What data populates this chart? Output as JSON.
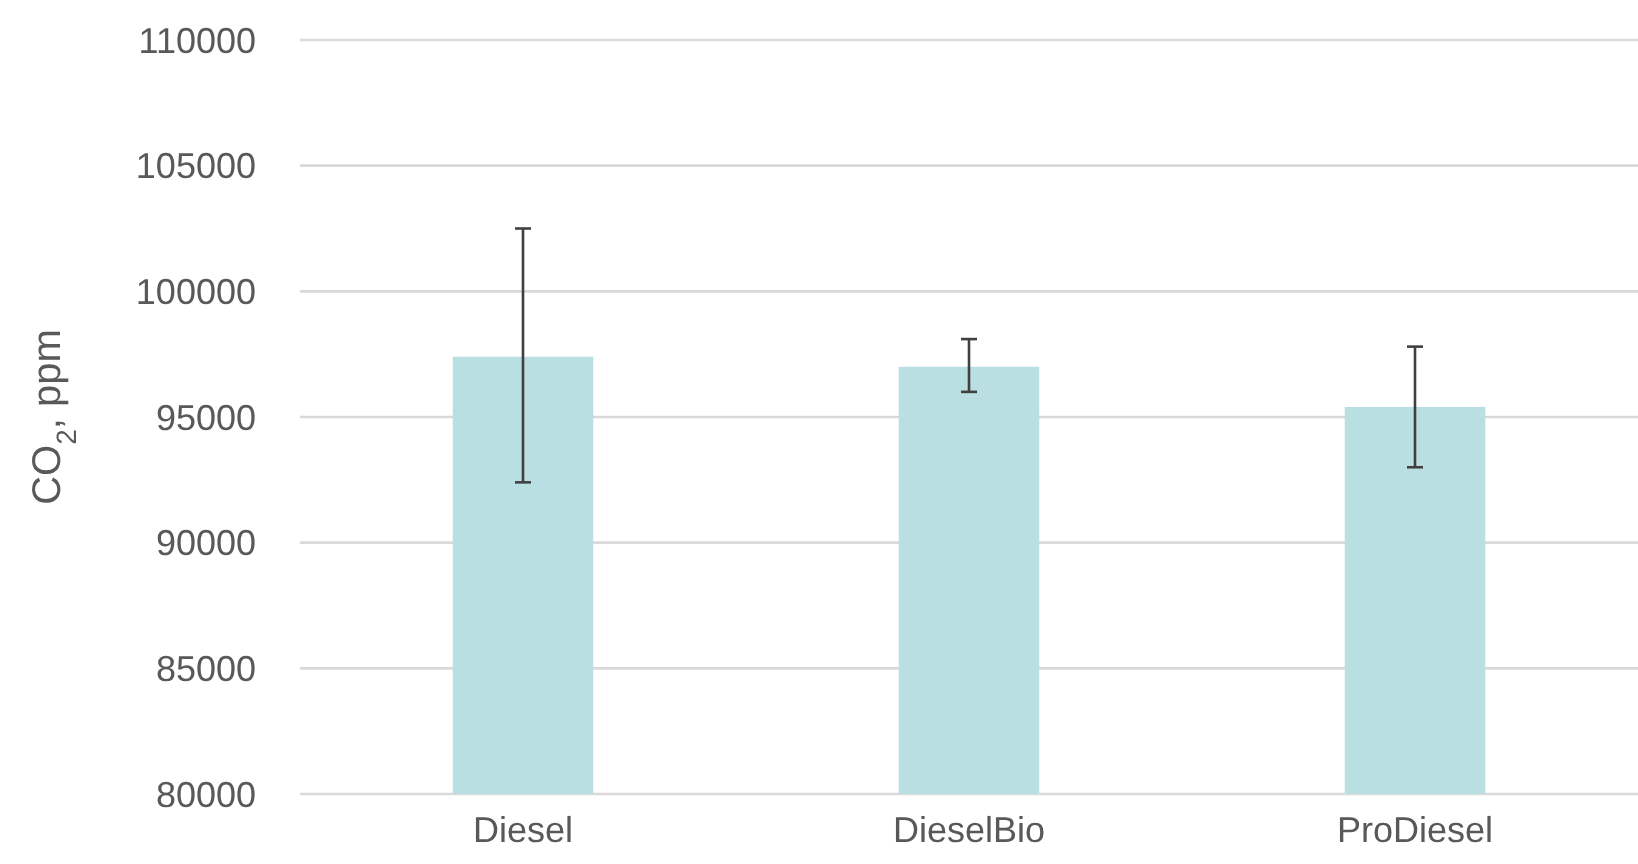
{
  "chart_data": {
    "type": "bar",
    "ylabel": "CO$_{2}$,  ppm",
    "categories": [
      "Diesel",
      "DieselBio",
      "ProDiesel"
    ],
    "values": [
      97400,
      97000,
      95400
    ],
    "errors": [
      [
        92400,
        102500
      ],
      [
        96000,
        98100
      ],
      [
        93000,
        97800
      ]
    ],
    "color": "#badfe2",
    "ylim": [
      80000,
      110000
    ],
    "yticks": [
      80000,
      85000,
      90000,
      95000,
      100000,
      105000,
      110000
    ],
    "grid": "y"
  }
}
